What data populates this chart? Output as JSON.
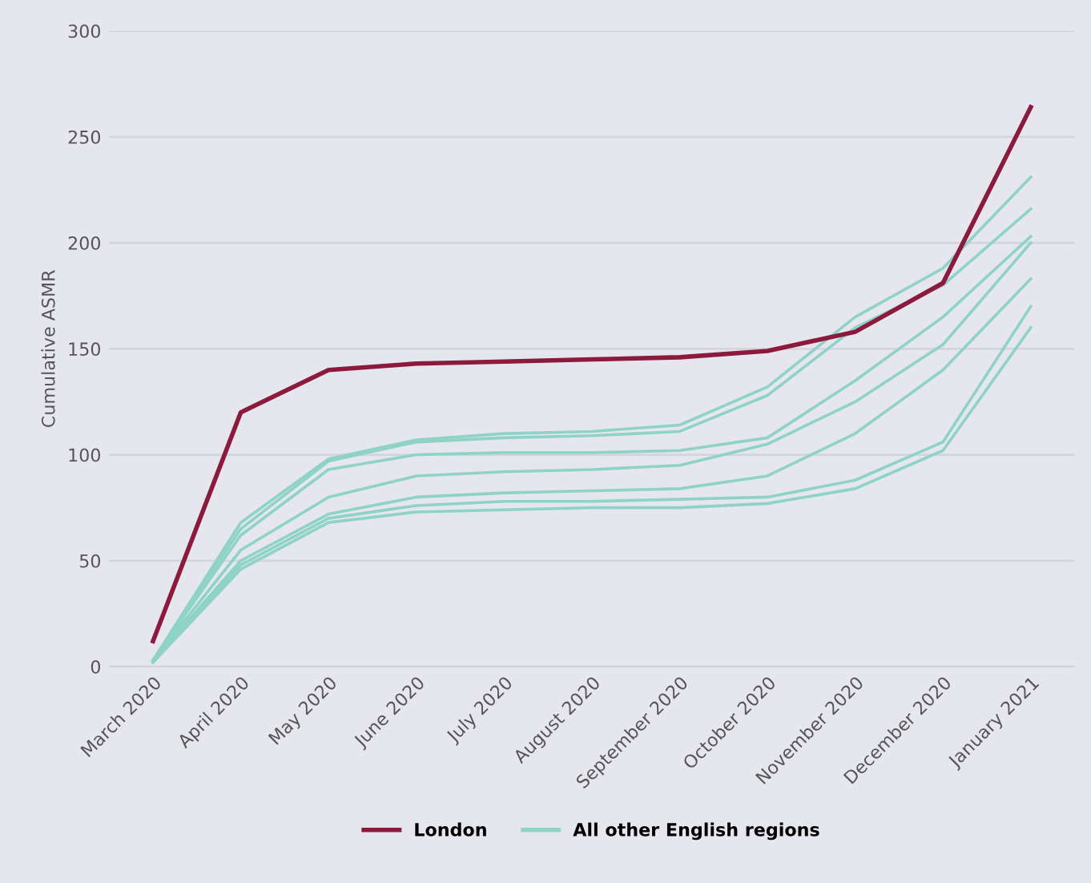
{
  "chart_data": {
    "type": "line",
    "ylabel": "Cumulative ASMR",
    "categories": [
      "March 2020",
      "April 2020",
      "May 2020",
      "June 2020",
      "July 2020",
      "August 2020",
      "September 2020",
      "October 2020",
      "November 2020",
      "December 2020",
      "January 2021"
    ],
    "ylim": [
      0,
      300
    ],
    "yticks": [
      0,
      50,
      100,
      150,
      200,
      250,
      300
    ],
    "grid": "y",
    "legend": "bottom",
    "marker": "none",
    "line_style": "solid",
    "series": [
      {
        "name": "All other English regions",
        "color": "#8fd3c8",
        "values": [
          3,
          68,
          98,
          107,
          110,
          111,
          114,
          132,
          165,
          188,
          231
        ]
      },
      {
        "color": "#8fd3c8",
        "values": [
          3,
          65,
          97,
          106,
          108,
          109,
          111,
          128,
          160,
          180,
          216
        ]
      },
      {
        "color": "#8fd3c8",
        "values": [
          3,
          62,
          93,
          100,
          101,
          101,
          102,
          108,
          135,
          165,
          203
        ]
      },
      {
        "color": "#8fd3c8",
        "values": [
          3,
          55,
          80,
          90,
          92,
          93,
          95,
          105,
          125,
          152,
          200
        ]
      },
      {
        "color": "#8fd3c8",
        "values": [
          3,
          50,
          72,
          80,
          82,
          83,
          84,
          90,
          110,
          140,
          183
        ]
      },
      {
        "color": "#8fd3c8",
        "values": [
          2,
          48,
          70,
          76,
          78,
          78,
          79,
          80,
          88,
          106,
          170
        ]
      },
      {
        "color": "#8fd3c8",
        "values": [
          2,
          46,
          68,
          73,
          74,
          75,
          75,
          77,
          84,
          102,
          160
        ]
      },
      {
        "name": "London",
        "color": "#8b1a3c",
        "values": [
          12,
          120,
          140,
          143,
          144,
          145,
          146,
          149,
          158,
          181,
          264
        ]
      }
    ]
  }
}
